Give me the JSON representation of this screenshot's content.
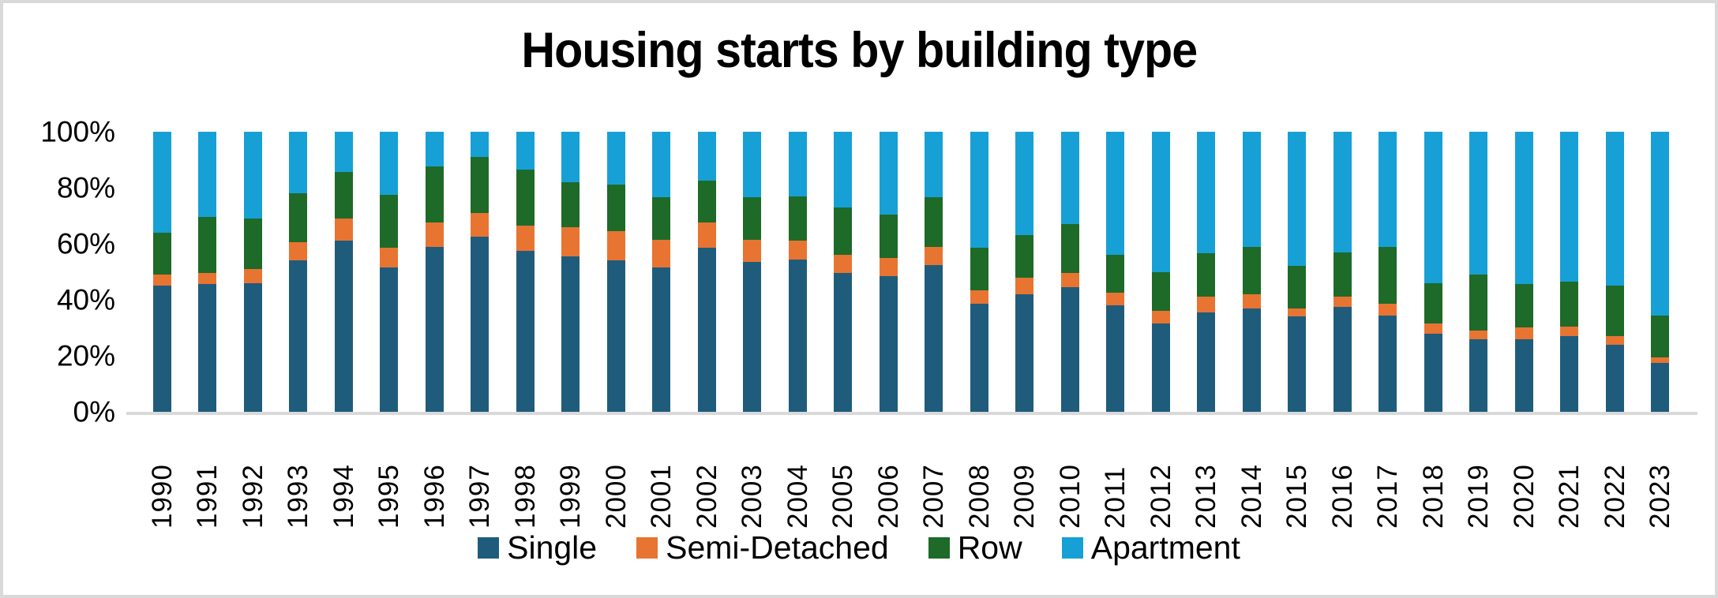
{
  "title": "Housing starts by building type",
  "y_axis": {
    "tick_labels": [
      "100%",
      "80%",
      "60%",
      "40%",
      "20%",
      "0%"
    ]
  },
  "axis_line_color": "#d9d9d9",
  "chart_data": {
    "type": "bar",
    "stacked": true,
    "percent_stacked": true,
    "title": "Housing starts by building type",
    "xlabel": "",
    "ylabel": "",
    "ylim": [
      0,
      100
    ],
    "grid": false,
    "legend_position": "bottom",
    "categories": [
      1990,
      1991,
      1992,
      1993,
      1994,
      1995,
      1996,
      1997,
      1998,
      1999,
      2000,
      2001,
      2002,
      2003,
      2004,
      2005,
      2006,
      2007,
      2008,
      2009,
      2010,
      2011,
      2012,
      2013,
      2014,
      2015,
      2016,
      2017,
      2018,
      2019,
      2020,
      2021,
      2022,
      2023
    ],
    "series": [
      {
        "name": "Single",
        "color": "#1f5c7c",
        "values": [
          45,
          45.5,
          46,
          54,
          61,
          51.5,
          59,
          62.5,
          57.5,
          55.5,
          54,
          51.5,
          58.5,
          53.5,
          54.5,
          49.5,
          48.5,
          52.5,
          38.5,
          42,
          44.5,
          38,
          31.5,
          35.5,
          37,
          34,
          37.5,
          34.5,
          28,
          26,
          26,
          27,
          24,
          17.5
        ]
      },
      {
        "name": "Semi-Detached",
        "color": "#e87432",
        "values": [
          4,
          4,
          5,
          6.5,
          8,
          7,
          8.5,
          8.5,
          9,
          10.5,
          10.5,
          10,
          9,
          8,
          6.5,
          6.5,
          6.5,
          6.5,
          5,
          6,
          5,
          4.5,
          4.5,
          5.5,
          5,
          3,
          3.5,
          4,
          3.5,
          3,
          4,
          3.5,
          3,
          2
        ]
      },
      {
        "name": "Row",
        "color": "#1e6a28",
        "values": [
          15,
          20,
          18,
          17.5,
          16.5,
          19,
          20,
          20,
          20,
          16,
          16.5,
          15,
          15,
          15,
          16,
          17,
          15.5,
          17.5,
          15,
          15,
          17.5,
          13.5,
          14,
          15.5,
          17,
          15,
          16,
          20.5,
          14.5,
          20,
          15.5,
          16,
          18,
          15
        ]
      },
      {
        "name": "Apartment",
        "color": "#17a0d5",
        "values": [
          36,
          30.5,
          31,
          22,
          14.5,
          22.5,
          12.5,
          9,
          13.5,
          18,
          19,
          23.5,
          17.5,
          23.5,
          23,
          27,
          29.5,
          23.5,
          41.5,
          37,
          33,
          44,
          50,
          43.5,
          41,
          48,
          43,
          41,
          54,
          51,
          54.5,
          53.5,
          55,
          65.5
        ]
      }
    ]
  }
}
